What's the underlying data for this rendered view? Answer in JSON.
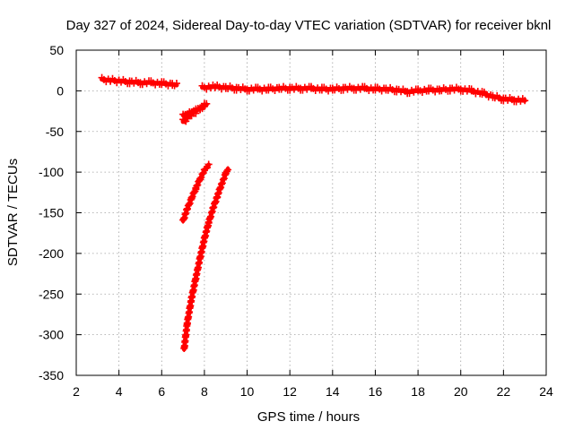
{
  "chart_data": {
    "type": "scatter",
    "title": "Day 327 of 2024, Sidereal Day-to-day VTEC variation (SDTVAR) for receiver bknl",
    "xlabel": "GPS time / hours",
    "ylabel": "SDTVAR / TECUs",
    "xlim": [
      2,
      24
    ],
    "ylim": [
      -350,
      50
    ],
    "xticks": [
      2,
      4,
      6,
      8,
      10,
      12,
      14,
      16,
      18,
      20,
      22,
      24
    ],
    "yticks": [
      50,
      0,
      -50,
      -100,
      -150,
      -200,
      -250,
      -300,
      -350
    ],
    "grid": true,
    "marker": "plus",
    "series_color": "#ff0000",
    "series": [
      {
        "name": "main-trace",
        "x": [
          3.2,
          3.6,
          4.0,
          4.5,
          5.0,
          5.5,
          6.0,
          6.5,
          6.7
        ],
        "y": [
          14,
          13,
          12,
          11,
          10,
          10,
          9,
          8,
          7
        ],
        "band": 4
      },
      {
        "name": "main-trace-late",
        "x": [
          7.9,
          8.5,
          9.0,
          9.5,
          10.0,
          10.5,
          11.0,
          11.5,
          12.0,
          12.5,
          13.0,
          13.5,
          14.0,
          14.5,
          15.0,
          15.5,
          16.0,
          16.5,
          17.0,
          17.5,
          18.0,
          18.5,
          19.0,
          19.5,
          20.0,
          20.5,
          21.0,
          21.5,
          22.0,
          22.5,
          23.0
        ],
        "y": [
          4,
          5,
          4,
          3,
          2,
          2,
          2,
          3,
          3,
          3,
          3,
          2,
          2,
          3,
          3,
          3,
          2,
          2,
          1,
          -1,
          0,
          1,
          1,
          2,
          2,
          0,
          -3,
          -7,
          -10,
          -11,
          -12
        ],
        "band": 4
      },
      {
        "name": "upper-short-arc",
        "x": [
          7.0,
          7.2,
          7.4,
          7.6,
          7.8,
          8.0
        ],
        "y": [
          -38,
          -33,
          -28,
          -25,
          -21,
          -17
        ],
        "band": 5
      },
      {
        "name": "upper-short-arc-2",
        "x": [
          7.0,
          7.2,
          7.5,
          7.8,
          8.1
        ],
        "y": [
          -30,
          -28,
          -25,
          -22,
          -17
        ],
        "band": 2
      },
      {
        "name": "middle-arc",
        "x": [
          7.0,
          7.2,
          7.4,
          7.6,
          7.8,
          8.0,
          8.2
        ],
        "y": [
          -160,
          -145,
          -132,
          -120,
          -108,
          -98,
          -91
        ],
        "band": 2
      },
      {
        "name": "deep-arc",
        "x": [
          7.05,
          7.2,
          7.4,
          7.6,
          7.8,
          8.0,
          8.2,
          8.4,
          8.6,
          8.8,
          9.0,
          9.1
        ],
        "y": [
          -318,
          -285,
          -255,
          -230,
          -205,
          -182,
          -162,
          -145,
          -130,
          -115,
          -102,
          -96
        ],
        "band": 2
      }
    ]
  }
}
